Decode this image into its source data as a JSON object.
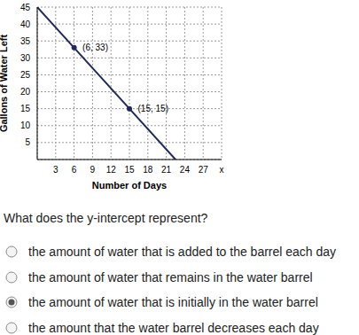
{
  "chart_data": {
    "type": "line",
    "x_label": "Number of Days",
    "y_label": "Gallons of Water Left",
    "x": [
      0,
      6,
      15,
      22.5
    ],
    "values": [
      45,
      33,
      15,
      0
    ],
    "color": "#1f2a5c",
    "xlim": [
      0,
      30
    ],
    "ylim": [
      0,
      45
    ],
    "xticks": [
      3,
      6,
      9,
      12,
      15,
      18,
      21,
      24,
      27,
      {
        "value": 30,
        "label": "x"
      }
    ],
    "yticks": [
      5,
      10,
      15,
      20,
      25,
      30,
      35,
      40,
      45
    ],
    "grid": true,
    "marker": "none",
    "points": [
      {
        "x": 6,
        "y": 33,
        "label": "(6, 33)"
      },
      {
        "x": 15,
        "y": 15,
        "label": "(15, 15)"
      }
    ]
  },
  "question": "What does the y-intercept represent?",
  "options": [
    "the amount of water that is added to the barrel each day",
    "the amount of water that remains in the water barrel",
    "the amount of water that is initially in the water barrel",
    "the amount that the water barrel decreases each day"
  ],
  "selected": "the amount of water that is initially in the water barrel"
}
